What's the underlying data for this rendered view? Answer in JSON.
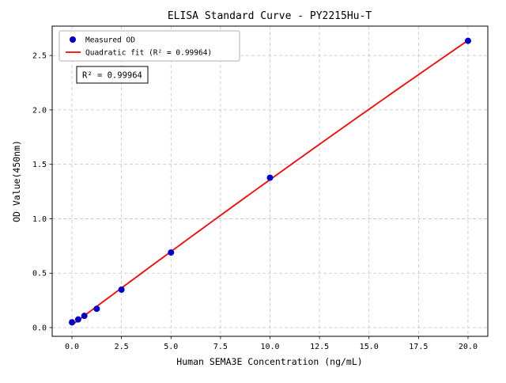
{
  "chart_data": {
    "type": "scatter",
    "title": "ELISA Standard Curve - PY2215Hu-T",
    "xlabel": "Human SEMA3E Concentration (ng/mL)",
    "ylabel": "OD Value(450nm)",
    "xlim": [
      -1,
      21
    ],
    "ylim": [
      -0.08,
      2.77
    ],
    "grid": true,
    "x_ticks": [
      0,
      2.5,
      5,
      7.5,
      10,
      12.5,
      15,
      17.5,
      20
    ],
    "x_tick_labels": [
      "0.0",
      "2.5",
      "5.0",
      "7.5",
      "10.0",
      "12.5",
      "15.0",
      "17.5",
      "20.0"
    ],
    "y_ticks": [
      0,
      0.5,
      1.0,
      1.5,
      2.0,
      2.5
    ],
    "y_tick_labels": [
      "0.0",
      "0.5",
      "1.0",
      "1.5",
      "2.0",
      "2.5"
    ],
    "series": [
      {
        "name": "Measured OD",
        "kind": "scatter",
        "color": "#0000cd",
        "x": [
          0,
          0.313,
          0.625,
          1.25,
          2.5,
          5,
          10,
          20
        ],
        "y": [
          0.049,
          0.075,
          0.108,
          0.173,
          0.349,
          0.69,
          1.377,
          2.635
        ]
      },
      {
        "name": "Quadratic fit (R² = 0.99964)",
        "kind": "fit-quadratic",
        "color": "#ff0000",
        "fit_domain": [
          0,
          20
        ]
      }
    ],
    "legend": {
      "position": "upper-left",
      "entries": [
        "Measured OD",
        "Quadratic fit (R² = 0.99964)"
      ]
    },
    "annotation": "R² = 0.99964",
    "colors": {
      "grid": "#c3c3c3",
      "axis": "#000000",
      "text": "#000000",
      "legend_border": "#b0b0b0",
      "annotation_border": "#000000",
      "background": "#ffffff"
    }
  }
}
